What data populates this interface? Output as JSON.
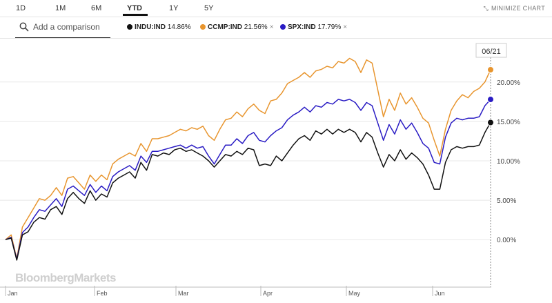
{
  "range_tabs": [
    "1D",
    "1M",
    "6M",
    "YTD",
    "1Y",
    "5Y"
  ],
  "active_range": "YTD",
  "minimize_label": "MINIMIZE CHART",
  "search": {
    "placeholder": "Add a comparison"
  },
  "legend": [
    {
      "name": "INDU:IND",
      "value": "14.86%",
      "color": "#111111",
      "removable": false
    },
    {
      "name": "CCMP:IND",
      "value": "21.56%",
      "color": "#e8952e",
      "removable": true
    },
    {
      "name": "SPX:IND",
      "value": "17.79%",
      "color": "#2a1cc4",
      "removable": true
    }
  ],
  "close_glyph": "×",
  "date_badge": "06/21",
  "watermark": "BloombergMarkets",
  "chart_data": {
    "type": "line",
    "x_labels": [
      "Jan",
      "Feb",
      "Mar",
      "Apr",
      "May",
      "Jun"
    ],
    "y_ticks": [
      "0.00%",
      "5.00%",
      "10.00%",
      "15.00%",
      "20.00%"
    ],
    "ylim": [
      -5.5,
      25.5
    ],
    "grid": true,
    "series": [
      {
        "name": "INDU:IND",
        "color": "#111111",
        "values": [
          0,
          0.2,
          -2.6,
          0.6,
          1.0,
          2.2,
          2.8,
          2.6,
          3.8,
          4.2,
          3.2,
          5.2,
          6.0,
          5.2,
          4.6,
          6.2,
          5.0,
          5.8,
          5.4,
          7.2,
          7.8,
          8.2,
          8.6,
          7.8,
          9.8,
          8.8,
          10.8,
          10.6,
          11.0,
          10.8,
          11.4,
          11.6,
          11.2,
          11.4,
          11.0,
          10.6,
          10.0,
          9.2,
          10.0,
          10.8,
          10.6,
          11.2,
          10.8,
          11.6,
          11.4,
          9.4,
          9.6,
          9.4,
          10.6,
          10.0,
          11.0,
          12.0,
          12.8,
          13.2,
          12.6,
          13.8,
          13.4,
          14.0,
          13.4,
          14.0,
          13.6,
          14.0,
          13.6,
          12.4,
          13.6,
          13.0,
          11.0,
          9.2,
          10.8,
          10.0,
          11.4,
          10.2,
          11.0,
          10.4,
          9.6,
          8.2,
          6.4,
          6.4,
          9.8,
          11.4,
          11.8,
          11.6,
          11.8,
          11.8,
          12.0,
          13.6,
          14.86
        ],
        "end_value": 14.86
      },
      {
        "name": "CCMP:IND",
        "color": "#e8952e",
        "values": [
          0,
          0.6,
          -2.4,
          1.6,
          2.8,
          4.0,
          5.2,
          5.0,
          5.6,
          6.6,
          5.6,
          7.8,
          8.0,
          7.2,
          6.4,
          8.2,
          7.4,
          8.2,
          7.6,
          9.6,
          10.2,
          10.6,
          11.0,
          10.6,
          12.2,
          11.2,
          12.8,
          12.8,
          13.0,
          13.2,
          13.6,
          14.0,
          13.8,
          14.2,
          14.0,
          14.4,
          13.2,
          12.6,
          14.0,
          15.2,
          15.4,
          16.2,
          15.6,
          16.6,
          17.2,
          16.4,
          16.0,
          17.6,
          17.8,
          18.6,
          19.8,
          20.2,
          20.6,
          21.2,
          20.6,
          21.4,
          21.6,
          22.0,
          21.8,
          22.6,
          22.4,
          23.0,
          22.6,
          21.2,
          22.8,
          22.4,
          19.0,
          15.6,
          17.8,
          16.4,
          18.6,
          17.2,
          18.0,
          16.8,
          15.4,
          14.8,
          12.6,
          10.6,
          14.0,
          16.4,
          17.6,
          18.4,
          18.0,
          18.8,
          19.2,
          20.0,
          21.56
        ],
        "end_value": 21.56
      },
      {
        "name": "SPX:IND",
        "color": "#2a1cc4",
        "values": [
          0,
          0.3,
          -2.5,
          0.9,
          1.6,
          2.8,
          3.8,
          3.6,
          4.4,
          5.2,
          4.2,
          6.4,
          6.8,
          6.2,
          5.6,
          7.0,
          6.0,
          6.8,
          6.2,
          8.0,
          8.6,
          9.0,
          9.4,
          8.8,
          10.6,
          9.8,
          11.2,
          11.2,
          11.4,
          11.6,
          11.8,
          12.0,
          11.6,
          12.0,
          11.6,
          11.8,
          10.6,
          9.6,
          10.8,
          12.0,
          12.0,
          12.8,
          12.2,
          13.2,
          13.6,
          12.6,
          12.4,
          13.2,
          13.8,
          14.2,
          15.2,
          15.8,
          16.2,
          16.8,
          16.2,
          17.0,
          16.8,
          17.4,
          17.2,
          17.8,
          17.6,
          17.8,
          17.4,
          16.4,
          17.4,
          17.0,
          14.8,
          12.6,
          14.6,
          13.4,
          15.2,
          14.0,
          14.8,
          13.6,
          12.2,
          11.6,
          9.8,
          9.6,
          13.0,
          14.8,
          15.4,
          15.2,
          15.4,
          15.4,
          15.6,
          17.0,
          17.79
        ],
        "end_value": 17.79
      }
    ]
  }
}
